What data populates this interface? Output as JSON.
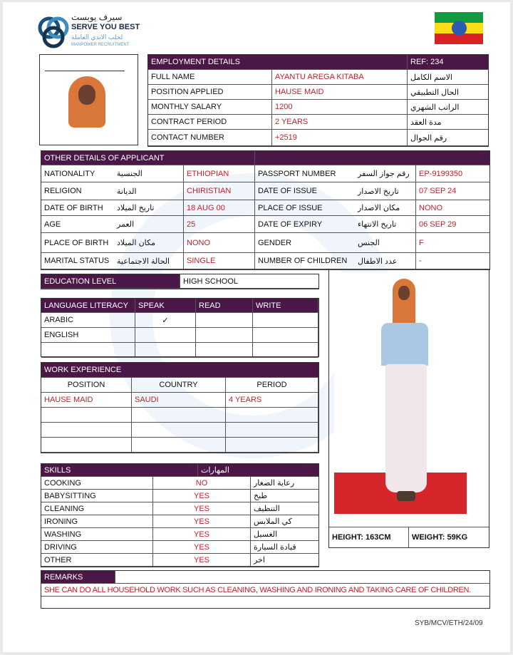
{
  "logo": {
    "arabic": "سيرف يوبست",
    "name": "SERVE YOU BEST",
    "arabic_sub": "لجلب الايدي العاملة",
    "sub": "MANPOWER RECRUITMENT"
  },
  "flag": "ethiopia-flag",
  "colors": {
    "header": "#4b1747",
    "value": "#c3202a"
  },
  "employment": {
    "title": "EMPLOYMENT DETAILS",
    "ref": "REF:  234",
    "rows": [
      {
        "label": "FULL NAME",
        "value": "AYANTU  AREGA  KITABA",
        "ar": "الاسم الكامل"
      },
      {
        "label": "POSITION APPLIED",
        "value": "HAUSE MAID",
        "ar": "الحال التطبيقي"
      },
      {
        "label": "MONTHLY SALARY",
        "value": "1200",
        "ar": "الراتب الشهري"
      },
      {
        "label": "CONTRACT PERIOD",
        "value": "2 YEARS",
        "ar": "مدة العقد"
      },
      {
        "label": "CONTACT NUMBER",
        "value": "+2519",
        "ar": "رقم الجوال"
      }
    ]
  },
  "other": {
    "title": "OTHER DETAILS OF APPLICANT",
    "rows": [
      {
        "l1": "NATIONALITY",
        "a1": "الجنسية",
        "v1": "ETHIOPIAN",
        "l2": "PASSPORT NUMBER",
        "a2": "رقم جواز السفر",
        "v2": "EP-9199350"
      },
      {
        "l1": "RELIGION",
        "a1": "الديانة",
        "v1": "CHIRISTIAN",
        "l2": "DATE OF ISSUE",
        "a2": "تاريخ الاصدار",
        "v2": "07  SEP  24"
      },
      {
        "l1": "DATE OF BIRTH",
        "a1": "تاريخ الميلاد",
        "v1": "18  AUG  00",
        "l2": "PLACE OF ISSUE",
        "a2": "مكان الاصدار",
        "v2": "NONO"
      },
      {
        "l1": "AGE",
        "a1": "العمر",
        "v1": "25",
        "l2": "DATE OF EXPIRY",
        "a2": "تاريخ الانتهاء",
        "v2": "06  SEP  29"
      },
      {
        "l1": "PLACE OF BIRTH",
        "a1": "مكان الميلاد",
        "v1": "NONO",
        "l2": "GENDER",
        "a2": "الجنس",
        "v2": "F"
      },
      {
        "l1": "MARITAL STATUS",
        "a1": "الحالة الاجتماعية",
        "v1": "SINGLE",
        "l2": "NUMBER OF CHILDREN",
        "a2": "عدد الاطفال",
        "v2": "-"
      }
    ]
  },
  "education": {
    "label": "EDUCATION LEVEL",
    "value": "HIGH   SCHOOL"
  },
  "language": {
    "headers": [
      "LANGUAGE LITERACY",
      "SPEAK",
      "READ",
      "WRITE"
    ],
    "rows": [
      [
        "ARABIC",
        "✓",
        "",
        ""
      ],
      [
        "ENGLISH",
        "",
        "",
        ""
      ],
      [
        "",
        "",
        "",
        ""
      ]
    ]
  },
  "work": {
    "title": "WORK EXPERIENCE",
    "headers": [
      "POSITION",
      "COUNTRY",
      "PERIOD"
    ],
    "rows": [
      [
        "HAUSE MAID",
        "SAUDI",
        "4  YEARS"
      ],
      [
        "",
        "",
        ""
      ],
      [
        "",
        "",
        ""
      ],
      [
        "",
        "",
        ""
      ]
    ]
  },
  "skills": {
    "title": "SKILLS",
    "title_ar": "المهارات",
    "rows": [
      [
        "COOKING",
        "NO",
        "رعاية الصغار"
      ],
      [
        "BABYSITTING",
        "YES",
        "طبخ"
      ],
      [
        "CLEANING",
        "YES",
        "التنظيف"
      ],
      [
        "IRONING",
        "YES",
        "كي الملابس"
      ],
      [
        "WASHING",
        "YES",
        "الغسيل"
      ],
      [
        "DRIVING",
        "YES",
        "قيادة السيارة"
      ],
      [
        "OTHER",
        "YES",
        "اخر"
      ]
    ]
  },
  "measures": {
    "height": "HEIGHT:   163CM",
    "weight": "WEIGHT:   59KG"
  },
  "remarks": {
    "title": "REMARKS",
    "text": "SHE CAN DO ALL HOUSEHOLD WORK SUCH AS CLEANING, WASHING AND IRONING AND TAKING CARE OF CHILDREN."
  },
  "footer": "SYB/MCV/ETH/24/09"
}
